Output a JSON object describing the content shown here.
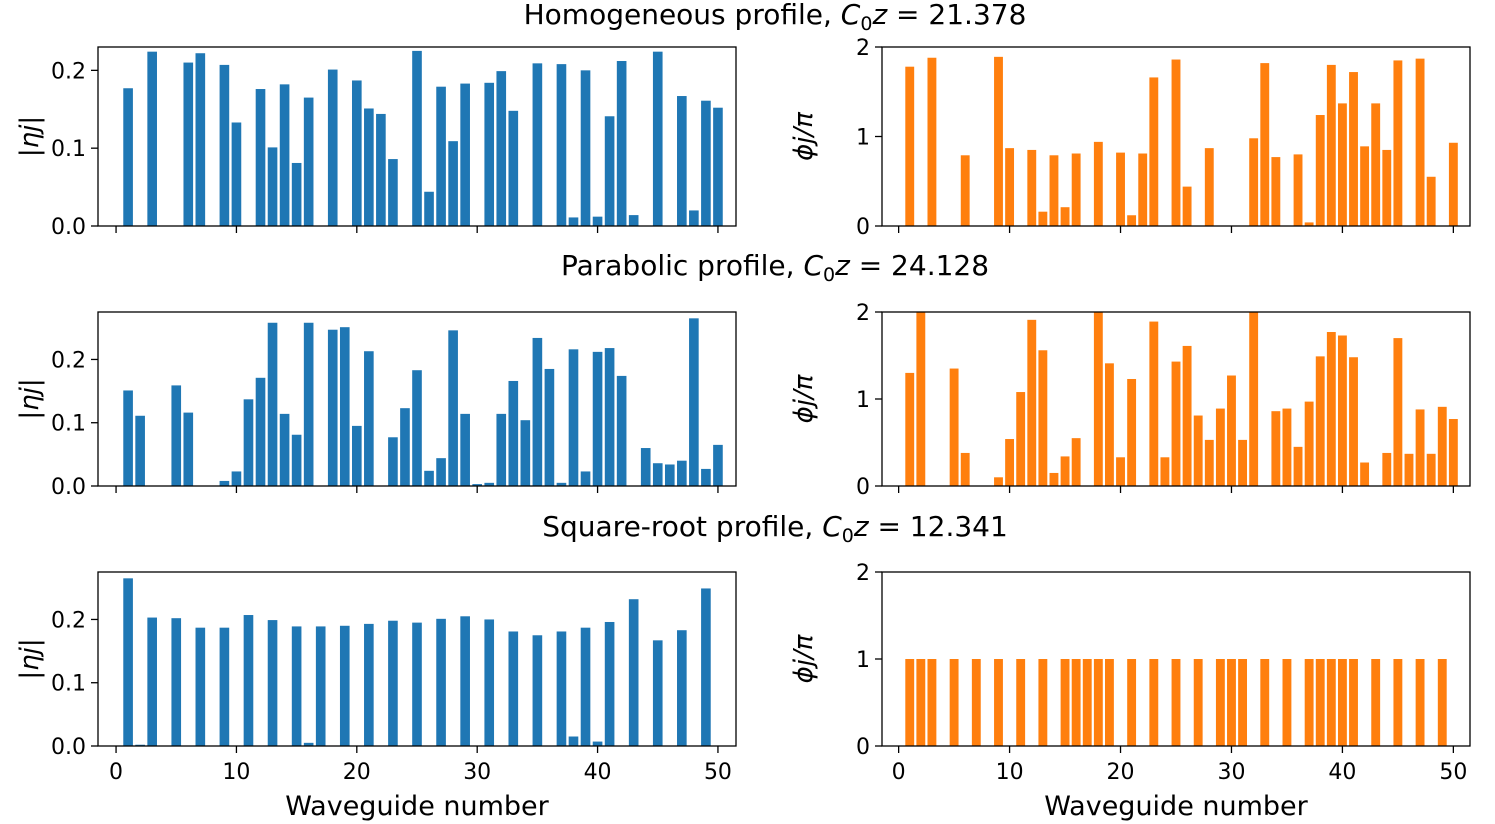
{
  "chart_data": [
    {
      "type": "bar",
      "panel": "homogeneous-amplitude",
      "title": "Homogeneous profile, C₀z = 21.378",
      "title_parts": {
        "prefix": "Homogeneous profile, ",
        "c": "C",
        "sub": "0",
        "z": "z",
        "eq": " = 21.378"
      },
      "xlabel": "",
      "ylabel": "|ηj|",
      "xlim": [
        -1.5,
        51.5
      ],
      "ylim": [
        0,
        0.23
      ],
      "yticks": [
        "0.0",
        "0.1",
        "0.2"
      ],
      "ytick_values": [
        0,
        0.1,
        0.2
      ],
      "xticks": [],
      "xtick_values": [
        0,
        10,
        20,
        30,
        40,
        50
      ],
      "x": [
        1,
        3,
        6,
        7,
        9,
        10,
        12,
        13,
        14,
        15,
        16,
        18,
        20,
        21,
        22,
        23,
        25,
        26,
        27,
        28,
        29,
        31,
        32,
        33,
        35,
        37,
        38,
        39,
        40,
        41,
        42,
        43,
        45,
        47,
        48,
        49,
        50
      ],
      "values": [
        0.177,
        0.224,
        0.21,
        0.222,
        0.207,
        0.133,
        0.176,
        0.101,
        0.182,
        0.081,
        0.165,
        0.201,
        0.187,
        0.151,
        0.144,
        0.086,
        0.225,
        0.044,
        0.179,
        0.109,
        0.183,
        0.184,
        0.199,
        0.148,
        0.209,
        0.208,
        0.011,
        0.2,
        0.012,
        0.141,
        0.212,
        0.014,
        0.224,
        0.167,
        0.02,
        0.161,
        0.152
      ],
      "color": "#1f77b4"
    },
    {
      "type": "bar",
      "panel": "homogeneous-phase",
      "xlabel": "",
      "ylabel": "ϕj/π",
      "xlim": [
        -1.5,
        51.5
      ],
      "ylim": [
        0,
        2
      ],
      "yticks": [
        "0",
        "1",
        "2"
      ],
      "ytick_values": [
        0,
        1,
        2
      ],
      "xticks": [],
      "xtick_values": [
        0,
        10,
        20,
        30,
        40,
        50
      ],
      "x": [
        1,
        3,
        6,
        9,
        10,
        12,
        13,
        14,
        15,
        16,
        18,
        20,
        21,
        22,
        23,
        25,
        26,
        28,
        32,
        33,
        34,
        36,
        37,
        38,
        39,
        40,
        41,
        42,
        43,
        44,
        45,
        47,
        48,
        49,
        50
      ],
      "values": [
        1.78,
        1.88,
        0.79,
        1.89,
        0.87,
        0.85,
        0.16,
        0.79,
        0.21,
        0.81,
        0.94,
        0.82,
        0.12,
        0.81,
        1.66,
        1.86,
        0.44,
        0.87,
        0.98,
        1.82,
        0.77,
        0.8,
        0.04,
        1.24,
        1.8,
        1.37,
        1.72,
        0.89,
        1.37,
        0.85,
        1.85,
        1.87,
        0.55,
        0.0,
        0.93
      ],
      "color": "#ff7f0e"
    },
    {
      "type": "bar",
      "panel": "parabolic-amplitude",
      "title": "Parabolic profile, C₀z = 24.128",
      "title_parts": {
        "prefix": "Parabolic profile, ",
        "c": "C",
        "sub": "0",
        "z": "z",
        "eq": " = 24.128"
      },
      "xlabel": "",
      "ylabel": "|ηj|",
      "xlim": [
        -1.5,
        51.5
      ],
      "ylim": [
        0,
        0.275
      ],
      "yticks": [
        "0.0",
        "0.1",
        "0.2"
      ],
      "ytick_values": [
        0,
        0.1,
        0.2
      ],
      "xticks": [],
      "xtick_values": [
        0,
        10,
        20,
        30,
        40,
        50
      ],
      "x": [
        1,
        2,
        5,
        6,
        9,
        10,
        11,
        12,
        13,
        14,
        15,
        16,
        18,
        19,
        20,
        21,
        23,
        24,
        25,
        26,
        27,
        28,
        29,
        30,
        31,
        32,
        33,
        34,
        35,
        36,
        37,
        38,
        39,
        40,
        41,
        42,
        44,
        45,
        46,
        47,
        48,
        49,
        50
      ],
      "values": [
        0.151,
        0.111,
        0.159,
        0.116,
        0.008,
        0.023,
        0.137,
        0.171,
        0.258,
        0.114,
        0.081,
        0.258,
        0.247,
        0.251,
        0.095,
        0.213,
        0.077,
        0.123,
        0.183,
        0.024,
        0.044,
        0.246,
        0.114,
        0.003,
        0.005,
        0.114,
        0.166,
        0.104,
        0.234,
        0.185,
        0.005,
        0.216,
        0.023,
        0.212,
        0.218,
        0.174,
        0.06,
        0.036,
        0.034,
        0.04,
        0.265,
        0.027,
        0.065
      ],
      "color": "#1f77b4"
    },
    {
      "type": "bar",
      "panel": "parabolic-phase",
      "xlabel": "",
      "ylabel": "ϕj/π",
      "xlim": [
        -1.5,
        51.5
      ],
      "ylim": [
        0,
        2
      ],
      "yticks": [
        "0",
        "1",
        "2"
      ],
      "ytick_values": [
        0,
        1,
        2
      ],
      "xticks": [],
      "xtick_values": [
        0,
        10,
        20,
        30,
        40,
        50
      ],
      "x": [
        1,
        2,
        5,
        6,
        9,
        10,
        11,
        12,
        13,
        14,
        15,
        16,
        18,
        19,
        20,
        21,
        23,
        24,
        25,
        26,
        27,
        28,
        29,
        30,
        31,
        32,
        34,
        35,
        36,
        37,
        38,
        39,
        40,
        41,
        42,
        44,
        45,
        46,
        47,
        48,
        49,
        50
      ],
      "values": [
        1.3,
        2.0,
        1.35,
        0.38,
        0.1,
        0.54,
        1.08,
        1.91,
        1.56,
        0.15,
        0.34,
        0.55,
        2.0,
        1.41,
        0.33,
        1.23,
        1.89,
        0.33,
        1.43,
        1.61,
        0.81,
        0.53,
        0.89,
        1.27,
        0.53,
        2.0,
        0.86,
        0.89,
        0.45,
        0.97,
        1.49,
        1.77,
        1.73,
        1.48,
        0.27,
        0.38,
        1.7,
        0.37,
        0.88,
        0.37,
        0.91,
        0.77
      ],
      "color": "#ff7f0e"
    },
    {
      "type": "bar",
      "panel": "square-root-amplitude",
      "title": "Square-root profile, C₀z = 12.341",
      "title_parts": {
        "prefix": "Square-root profile, ",
        "c": "C",
        "sub": "0",
        "z": "z",
        "eq": " = 12.341"
      },
      "xlabel": "Waveguide number",
      "ylabel": "|ηj|",
      "xlim": [
        -1.5,
        51.5
      ],
      "ylim": [
        0,
        0.275
      ],
      "yticks": [
        "0.0",
        "0.1",
        "0.2"
      ],
      "ytick_values": [
        0,
        0.1,
        0.2
      ],
      "xticks": [
        "0",
        "10",
        "20",
        "30",
        "40",
        "50"
      ],
      "xtick_values": [
        0,
        10,
        20,
        30,
        40,
        50
      ],
      "x": [
        1,
        2,
        3,
        5,
        7,
        9,
        11,
        13,
        15,
        16,
        17,
        19,
        21,
        23,
        25,
        27,
        29,
        31,
        33,
        35,
        37,
        38,
        39,
        40,
        41,
        43,
        45,
        47,
        49
      ],
      "values": [
        0.265,
        0.002,
        0.203,
        0.202,
        0.187,
        0.187,
        0.207,
        0.199,
        0.189,
        0.005,
        0.189,
        0.19,
        0.193,
        0.198,
        0.195,
        0.201,
        0.205,
        0.2,
        0.181,
        0.175,
        0.181,
        0.015,
        0.187,
        0.007,
        0.196,
        0.232,
        0.167,
        0.183,
        0.249
      ],
      "color": "#1f77b4"
    },
    {
      "type": "bar",
      "panel": "square-root-phase",
      "xlabel": "Waveguide number",
      "ylabel": "ϕj/π",
      "xlim": [
        -1.5,
        51.5
      ],
      "ylim": [
        0,
        2
      ],
      "yticks": [
        "0",
        "1",
        "2"
      ],
      "ytick_values": [
        0,
        1,
        2
      ],
      "xticks": [
        "0",
        "10",
        "20",
        "30",
        "40",
        "50"
      ],
      "xtick_values": [
        0,
        10,
        20,
        30,
        40,
        50
      ],
      "x": [
        1,
        2,
        3,
        5,
        7,
        9,
        11,
        13,
        15,
        16,
        17,
        18,
        19,
        21,
        23,
        25,
        27,
        29,
        30,
        31,
        33,
        35,
        37,
        38,
        39,
        40,
        41,
        43,
        45,
        47,
        49
      ],
      "values": [
        1,
        1,
        1,
        1,
        1,
        1,
        1,
        1,
        1,
        1,
        1,
        1,
        1,
        1,
        1,
        1,
        1,
        1,
        1,
        1,
        1,
        1,
        1,
        1,
        1,
        1,
        1,
        1,
        1,
        1,
        1
      ],
      "color": "#ff7f0e"
    }
  ]
}
